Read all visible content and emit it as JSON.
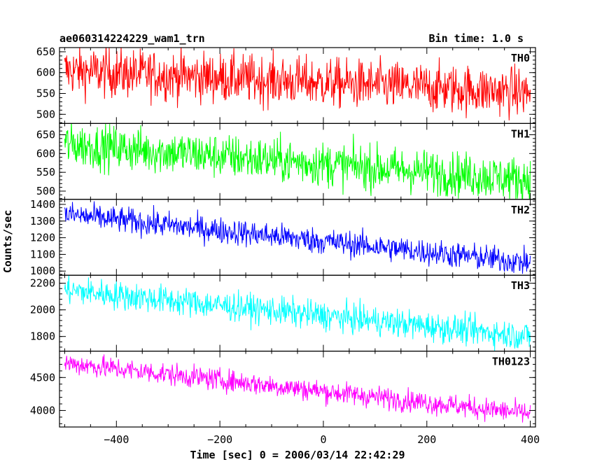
{
  "header": {
    "title": "ae060314224229_wam1_trn",
    "bin_time": "Bin time: 1.0 s"
  },
  "chart_data": {
    "type": "line",
    "x_range": [
      -510,
      410
    ],
    "x_ticks": [
      -400,
      -200,
      0,
      200,
      400
    ],
    "x_tick_labels": [
      "−400",
      "−200",
      "0",
      "200",
      "400"
    ],
    "xlabel": "Time [sec] 0 = 2006/03/14 22:42:29",
    "ylabel": "Counts/sec",
    "x_data_range": [
      -500,
      400
    ],
    "panels": [
      {
        "name": "TH0",
        "color": "#ff0000",
        "ylim": [
          478,
          660
        ],
        "y_ticks": [
          500,
          550,
          600,
          650
        ],
        "trend_start": 605,
        "trend_end": 552,
        "noise": 30
      },
      {
        "name": "TH1",
        "color": "#00ff00",
        "ylim": [
          478,
          680
        ],
        "y_ticks": [
          500,
          550,
          600,
          650
        ],
        "trend_start": 625,
        "trend_end": 530,
        "noise": 30
      },
      {
        "name": "TH2",
        "color": "#0000ff",
        "ylim": [
          975,
          1430
        ],
        "y_ticks": [
          1000,
          1100,
          1200,
          1300,
          1400
        ],
        "trend_start": 1340,
        "trend_end": 1050,
        "noise": 40
      },
      {
        "name": "TH3",
        "color": "#00ffff",
        "ylim": [
          1690,
          2260
        ],
        "y_ticks": [
          1800,
          2000,
          2200
        ],
        "trend_start": 2150,
        "trend_end": 1800,
        "noise": 55
      },
      {
        "name": "TH0123",
        "color": "#ff00ff",
        "ylim": [
          3750,
          4900
        ],
        "y_ticks": [
          4000,
          4500
        ],
        "trend_start": 4720,
        "trend_end": 3950,
        "noise": 85
      }
    ]
  }
}
